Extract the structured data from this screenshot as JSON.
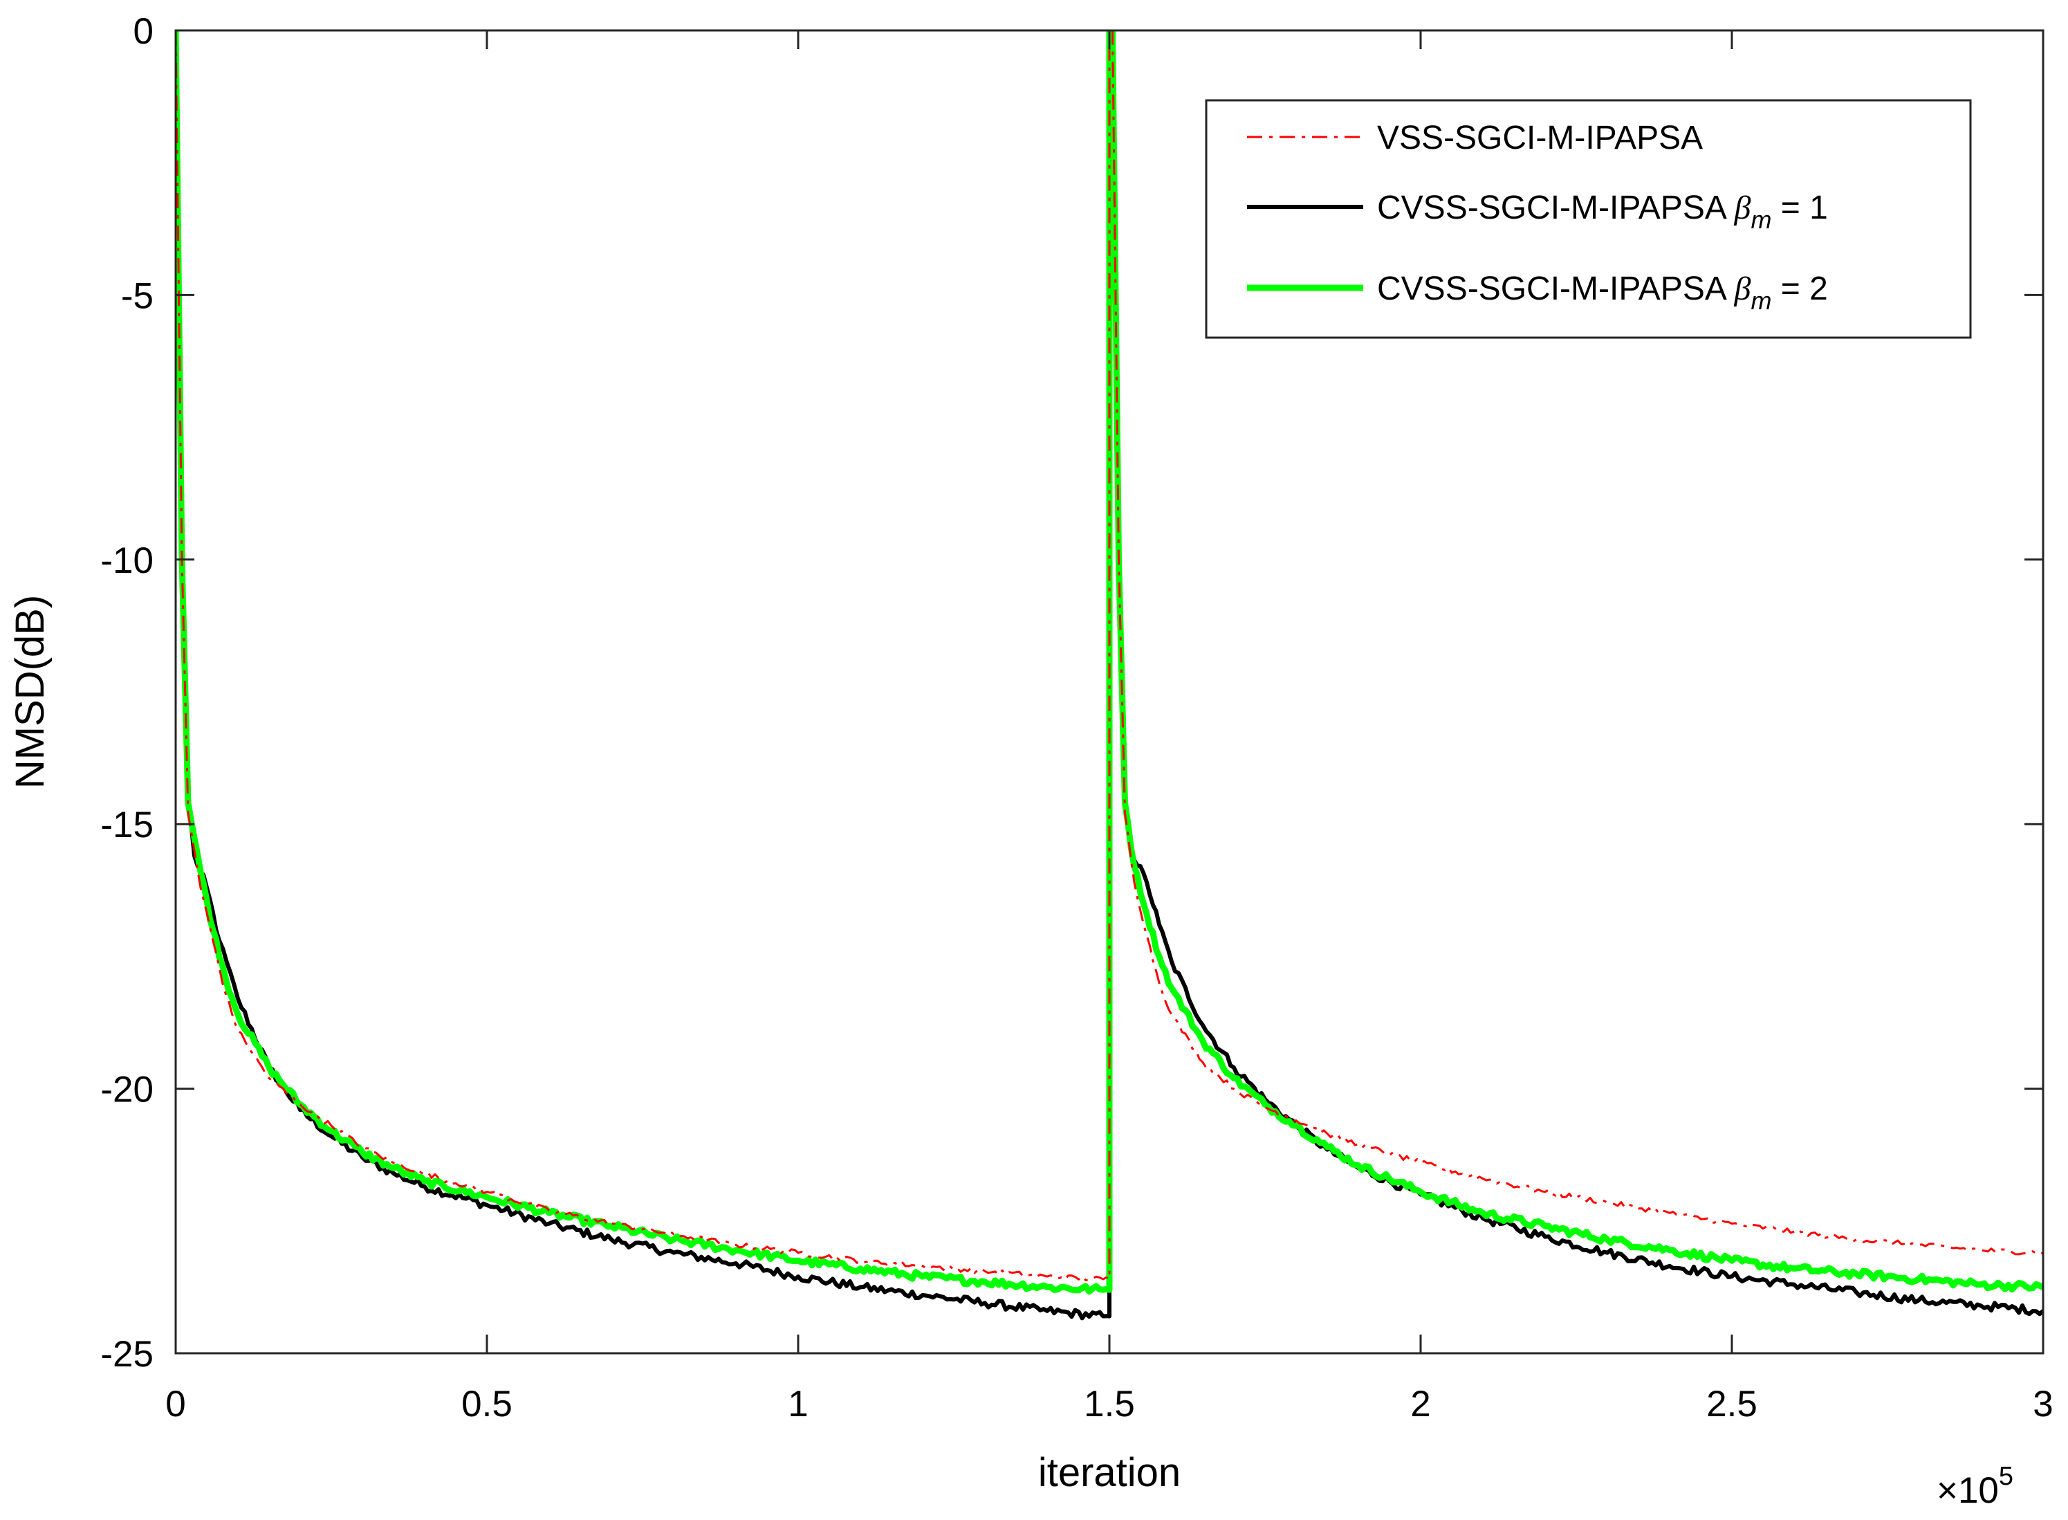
{
  "chart_data": {
    "type": "line",
    "xlabel": "iteration",
    "ylabel": "NMSD(dB)",
    "x_multiplier": {
      "prefix": "×10",
      "exponent": "5"
    },
    "xlim": [
      0,
      3
    ],
    "ylim": [
      -25,
      0
    ],
    "xticks": [
      0,
      0.5,
      1,
      1.5,
      2,
      2.5,
      3
    ],
    "xtick_labels": [
      "0",
      "0.5",
      "1",
      "1.5",
      "2",
      "2.5",
      "3"
    ],
    "yticks": [
      0,
      -5,
      -10,
      -15,
      -20,
      -25
    ],
    "ytick_labels": [
      "0",
      "-5",
      "-10",
      "-15",
      "-20",
      "-25"
    ],
    "grid": false,
    "legend_position": "top-right",
    "series": [
      {
        "name": "VSS-SGCI-M-IPAPSA",
        "legend_main": "VSS-SGCI-M-IPAPSA",
        "legend_beta": "",
        "legend_sub": "",
        "legend_value": "",
        "color": "#ff0000",
        "style": "dashdot",
        "noise": 0.05,
        "points": [
          [
            0,
            0
          ],
          [
            0.005,
            -5
          ],
          [
            0.01,
            -10
          ],
          [
            0.02,
            -14.8
          ],
          [
            0.04,
            -16.2
          ],
          [
            0.06,
            -17.2
          ],
          [
            0.08,
            -18.2
          ],
          [
            0.1,
            -18.9
          ],
          [
            0.15,
            -19.8
          ],
          [
            0.2,
            -20.3
          ],
          [
            0.25,
            -20.7
          ],
          [
            0.3,
            -21.1
          ],
          [
            0.35,
            -21.4
          ],
          [
            0.4,
            -21.6
          ],
          [
            0.5,
            -21.95
          ],
          [
            0.6,
            -22.3
          ],
          [
            0.7,
            -22.55
          ],
          [
            0.8,
            -22.75
          ],
          [
            0.9,
            -22.95
          ],
          [
            1.0,
            -23.1
          ],
          [
            1.1,
            -23.25
          ],
          [
            1.2,
            -23.35
          ],
          [
            1.3,
            -23.45
          ],
          [
            1.4,
            -23.55
          ],
          [
            1.49,
            -23.6
          ],
          [
            1.5,
            -23.6
          ],
          [
            1.5,
            0
          ],
          [
            1.505,
            0
          ],
          [
            1.51,
            -5
          ],
          [
            1.515,
            -10
          ],
          [
            1.525,
            -14.8
          ],
          [
            1.54,
            -16.1
          ],
          [
            1.56,
            -17.1
          ],
          [
            1.58,
            -18.0
          ],
          [
            1.6,
            -18.6
          ],
          [
            1.65,
            -19.5
          ],
          [
            1.7,
            -20.0
          ],
          [
            1.75,
            -20.35
          ],
          [
            1.8,
            -20.6
          ],
          [
            1.85,
            -20.85
          ],
          [
            1.9,
            -21.05
          ],
          [
            2.0,
            -21.4
          ],
          [
            2.1,
            -21.7
          ],
          [
            2.2,
            -21.95
          ],
          [
            2.3,
            -22.15
          ],
          [
            2.4,
            -22.35
          ],
          [
            2.5,
            -22.55
          ],
          [
            2.6,
            -22.7
          ],
          [
            2.7,
            -22.85
          ],
          [
            2.8,
            -22.95
          ],
          [
            2.9,
            -23.05
          ],
          [
            3.0,
            -23.1
          ]
        ]
      },
      {
        "name": "CVSS-SGCI-M-IPAPSA β_m = 1",
        "legend_main": "CVSS-SGCI-M-IPAPSA ",
        "legend_beta": "β",
        "legend_sub": "m",
        "legend_value": " = 1",
        "color": "#000000",
        "style": "solid",
        "noise": 0.08,
        "points": [
          [
            0,
            0
          ],
          [
            0.005,
            -5
          ],
          [
            0.01,
            -10
          ],
          [
            0.02,
            -14.5
          ],
          [
            0.03,
            -15.6
          ],
          [
            0.05,
            -16.2
          ],
          [
            0.07,
            -17.2
          ],
          [
            0.1,
            -18.3
          ],
          [
            0.15,
            -19.6
          ],
          [
            0.2,
            -20.4
          ],
          [
            0.25,
            -20.9
          ],
          [
            0.3,
            -21.3
          ],
          [
            0.35,
            -21.6
          ],
          [
            0.4,
            -21.85
          ],
          [
            0.5,
            -22.2
          ],
          [
            0.6,
            -22.55
          ],
          [
            0.7,
            -22.85
          ],
          [
            0.8,
            -23.1
          ],
          [
            0.9,
            -23.3
          ],
          [
            1.0,
            -23.55
          ],
          [
            1.1,
            -23.75
          ],
          [
            1.2,
            -23.9
          ],
          [
            1.3,
            -24.05
          ],
          [
            1.4,
            -24.2
          ],
          [
            1.49,
            -24.3
          ],
          [
            1.5,
            -24.3
          ],
          [
            1.5,
            0
          ],
          [
            1.505,
            0
          ],
          [
            1.51,
            -5
          ],
          [
            1.515,
            -10
          ],
          [
            1.525,
            -14.5
          ],
          [
            1.535,
            -15.5
          ],
          [
            1.56,
            -16.1
          ],
          [
            1.58,
            -16.9
          ],
          [
            1.6,
            -17.6
          ],
          [
            1.65,
            -18.8
          ],
          [
            1.7,
            -19.6
          ],
          [
            1.75,
            -20.2
          ],
          [
            1.8,
            -20.7
          ],
          [
            1.85,
            -21.15
          ],
          [
            1.9,
            -21.5
          ],
          [
            2.0,
            -22.0
          ],
          [
            2.1,
            -22.45
          ],
          [
            2.2,
            -22.8
          ],
          [
            2.3,
            -23.1
          ],
          [
            2.4,
            -23.35
          ],
          [
            2.5,
            -23.55
          ],
          [
            2.6,
            -23.7
          ],
          [
            2.7,
            -23.85
          ],
          [
            2.8,
            -24.0
          ],
          [
            2.9,
            -24.1
          ],
          [
            3.0,
            -24.2
          ]
        ]
      },
      {
        "name": "CVSS-SGCI-M-IPAPSA β_m = 2",
        "legend_main": "CVSS-SGCI-M-IPAPSA ",
        "legend_beta": "β",
        "legend_sub": "m",
        "legend_value": " = 2",
        "color": "#00ff00",
        "style": "solid",
        "noise": 0.07,
        "points": [
          [
            0,
            0
          ],
          [
            0.005,
            -5
          ],
          [
            0.01,
            -10
          ],
          [
            0.02,
            -14.6
          ],
          [
            0.04,
            -15.9
          ],
          [
            0.06,
            -17.0
          ],
          [
            0.08,
            -17.9
          ],
          [
            0.1,
            -18.6
          ],
          [
            0.15,
            -19.6
          ],
          [
            0.2,
            -20.3
          ],
          [
            0.25,
            -20.8
          ],
          [
            0.3,
            -21.2
          ],
          [
            0.35,
            -21.5
          ],
          [
            0.4,
            -21.75
          ],
          [
            0.5,
            -22.05
          ],
          [
            0.6,
            -22.35
          ],
          [
            0.7,
            -22.6
          ],
          [
            0.8,
            -22.85
          ],
          [
            0.9,
            -23.05
          ],
          [
            1.0,
            -23.25
          ],
          [
            1.1,
            -23.4
          ],
          [
            1.2,
            -23.55
          ],
          [
            1.3,
            -23.65
          ],
          [
            1.4,
            -23.75
          ],
          [
            1.49,
            -23.8
          ],
          [
            1.5,
            -23.8
          ],
          [
            1.5,
            0
          ],
          [
            1.505,
            0
          ],
          [
            1.51,
            -5
          ],
          [
            1.515,
            -10
          ],
          [
            1.525,
            -14.6
          ],
          [
            1.54,
            -15.8
          ],
          [
            1.56,
            -16.7
          ],
          [
            1.58,
            -17.5
          ],
          [
            1.6,
            -18.1
          ],
          [
            1.65,
            -19.1
          ],
          [
            1.7,
            -19.8
          ],
          [
            1.75,
            -20.3
          ],
          [
            1.8,
            -20.7
          ],
          [
            1.85,
            -21.1
          ],
          [
            1.9,
            -21.45
          ],
          [
            2.0,
            -21.95
          ],
          [
            2.1,
            -22.35
          ],
          [
            2.2,
            -22.6
          ],
          [
            2.3,
            -22.85
          ],
          [
            2.4,
            -23.05
          ],
          [
            2.5,
            -23.25
          ],
          [
            2.6,
            -23.4
          ],
          [
            2.7,
            -23.5
          ],
          [
            2.8,
            -23.6
          ],
          [
            2.9,
            -23.7
          ],
          [
            3.0,
            -23.75
          ]
        ]
      }
    ]
  }
}
